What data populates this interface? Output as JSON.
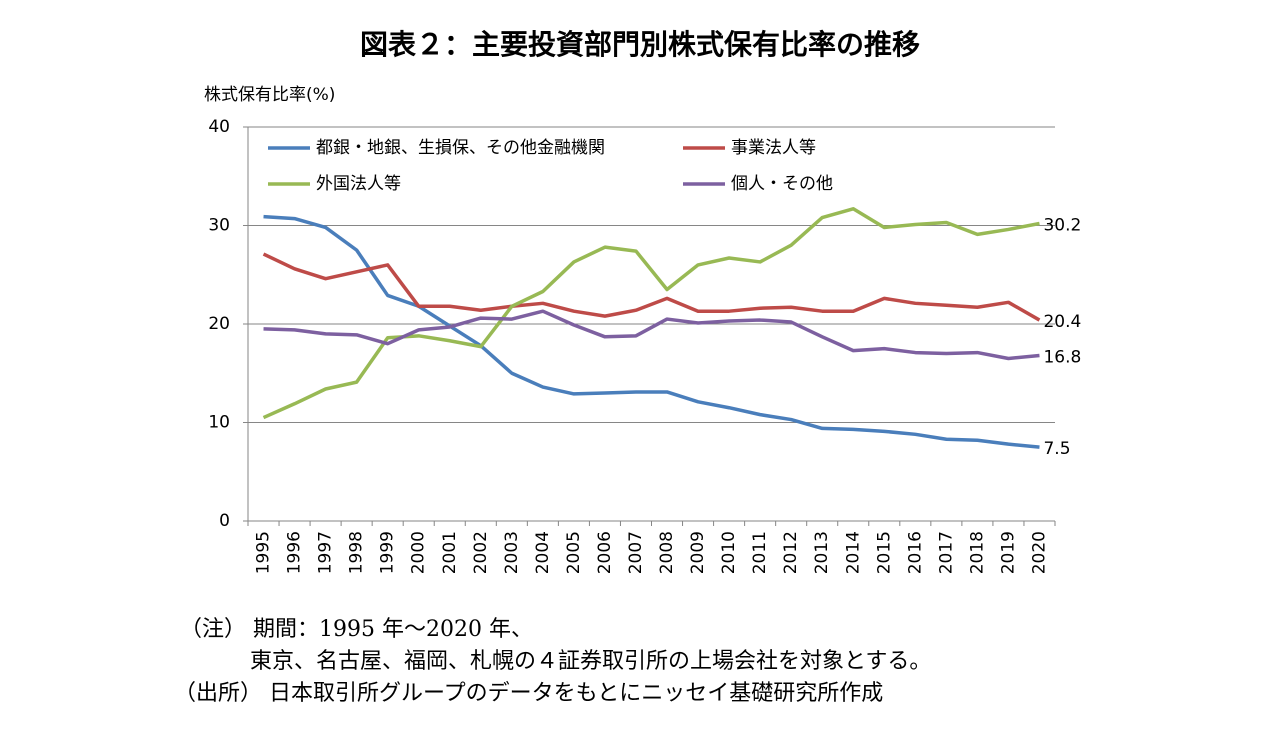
{
  "chart_data": {
    "type": "line",
    "title": "図表２：主要投資部門別株式保有比率の推移",
    "y_label": "株式保有比率(%)",
    "categories": [
      "1995",
      "1996",
      "1997",
      "1998",
      "1999",
      "2000",
      "2001",
      "2002",
      "2003",
      "2004",
      "2005",
      "2006",
      "2007",
      "2008",
      "2009",
      "2010",
      "2011",
      "2012",
      "2013",
      "2014",
      "2015",
      "2016",
      "2017",
      "2018",
      "2019",
      "2020"
    ],
    "series": [
      {
        "name": "都銀・地銀、生損保、その他金融機関",
        "color": "#4a7ebb",
        "values": [
          30.9,
          30.7,
          29.8,
          27.5,
          22.9,
          21.8,
          19.8,
          17.8,
          15.0,
          13.6,
          12.9,
          13.0,
          13.1,
          13.1,
          12.1,
          11.5,
          10.8,
          10.3,
          9.4,
          9.3,
          9.1,
          8.8,
          8.3,
          8.2,
          7.8,
          7.5
        ]
      },
      {
        "name": "事業法人等",
        "color": "#be4b48",
        "values": [
          27.1,
          25.6,
          24.6,
          25.3,
          26.0,
          21.8,
          21.8,
          21.4,
          21.8,
          22.1,
          21.3,
          20.8,
          21.4,
          22.6,
          21.3,
          21.3,
          21.6,
          21.7,
          21.3,
          21.3,
          22.6,
          22.1,
          21.9,
          21.7,
          22.2,
          20.4
        ]
      },
      {
        "name": "外国法人等",
        "color": "#98b954",
        "values": [
          10.5,
          11.9,
          13.4,
          14.1,
          18.6,
          18.8,
          18.3,
          17.7,
          21.8,
          23.3,
          26.3,
          27.8,
          27.4,
          23.5,
          26.0,
          26.7,
          26.3,
          28.0,
          30.8,
          31.7,
          29.8,
          30.1,
          30.3,
          29.1,
          29.6,
          30.2
        ]
      },
      {
        "name": "個人・その他",
        "color": "#7d60a0",
        "values": [
          19.5,
          19.4,
          19.0,
          18.9,
          18.0,
          19.4,
          19.7,
          20.6,
          20.5,
          21.3,
          19.9,
          18.7,
          18.8,
          20.5,
          20.1,
          20.3,
          20.4,
          20.2,
          18.7,
          17.3,
          17.5,
          17.1,
          17.0,
          17.1,
          16.5,
          16.8
        ]
      }
    ],
    "ylim": [
      0,
      40
    ],
    "yticks": [
      0,
      10,
      20,
      30,
      40
    ],
    "grid": true,
    "end_labels": true,
    "legend": "top"
  },
  "notes": [
    "（注） 期間：1995 年～2020 年、",
    "東京、名古屋、福岡、札幌の４証券取引所の上場会社を対象とする。",
    "（出所） 日本取引所グループのデータをもとにニッセイ基礎研究所作成"
  ]
}
